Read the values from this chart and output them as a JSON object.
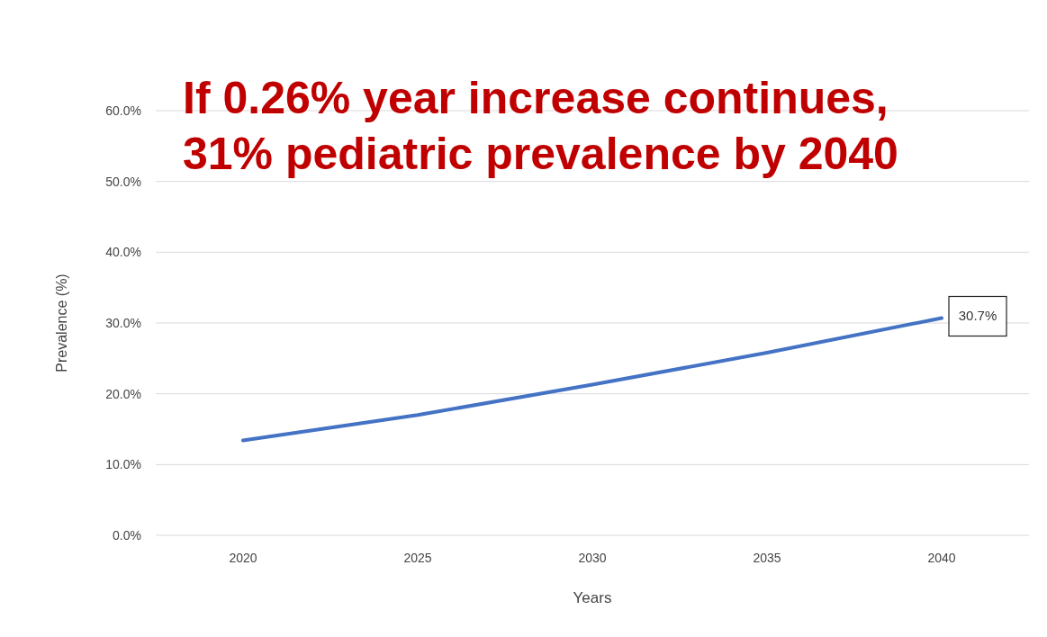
{
  "chart_data": {
    "type": "line",
    "title": "If 0.26% year increase continues,\n31% pediatric prevalence by 2040",
    "xlabel": "Years",
    "ylabel": "Prevalence (%)",
    "x": [
      2020,
      2025,
      2030,
      2035,
      2040
    ],
    "series": [
      {
        "color": "#4472c4",
        "values": [
          13.4,
          17.0,
          21.3,
          25.8,
          30.7
        ],
        "value_labels": [
          null,
          null,
          null,
          null,
          "30.7%"
        ]
      }
    ],
    "xlim": [
      2017.5,
      2042.5
    ],
    "xticks": [
      2020,
      2025,
      2030,
      2035,
      2040
    ],
    "ylim": [
      0,
      60
    ],
    "yticks": [
      {
        "value": 0,
        "label": "0.0%"
      },
      {
        "value": 10,
        "label": "10.0%"
      },
      {
        "value": 20,
        "label": "20.0%"
      },
      {
        "value": 30,
        "label": "30.0%"
      },
      {
        "value": 40,
        "label": "40.0%"
      },
      {
        "value": 50,
        "label": "50.0%"
      },
      {
        "value": 60,
        "label": "60.0%"
      }
    ],
    "grid": "y",
    "legend": false,
    "marker": "none",
    "line_style": "solid"
  }
}
